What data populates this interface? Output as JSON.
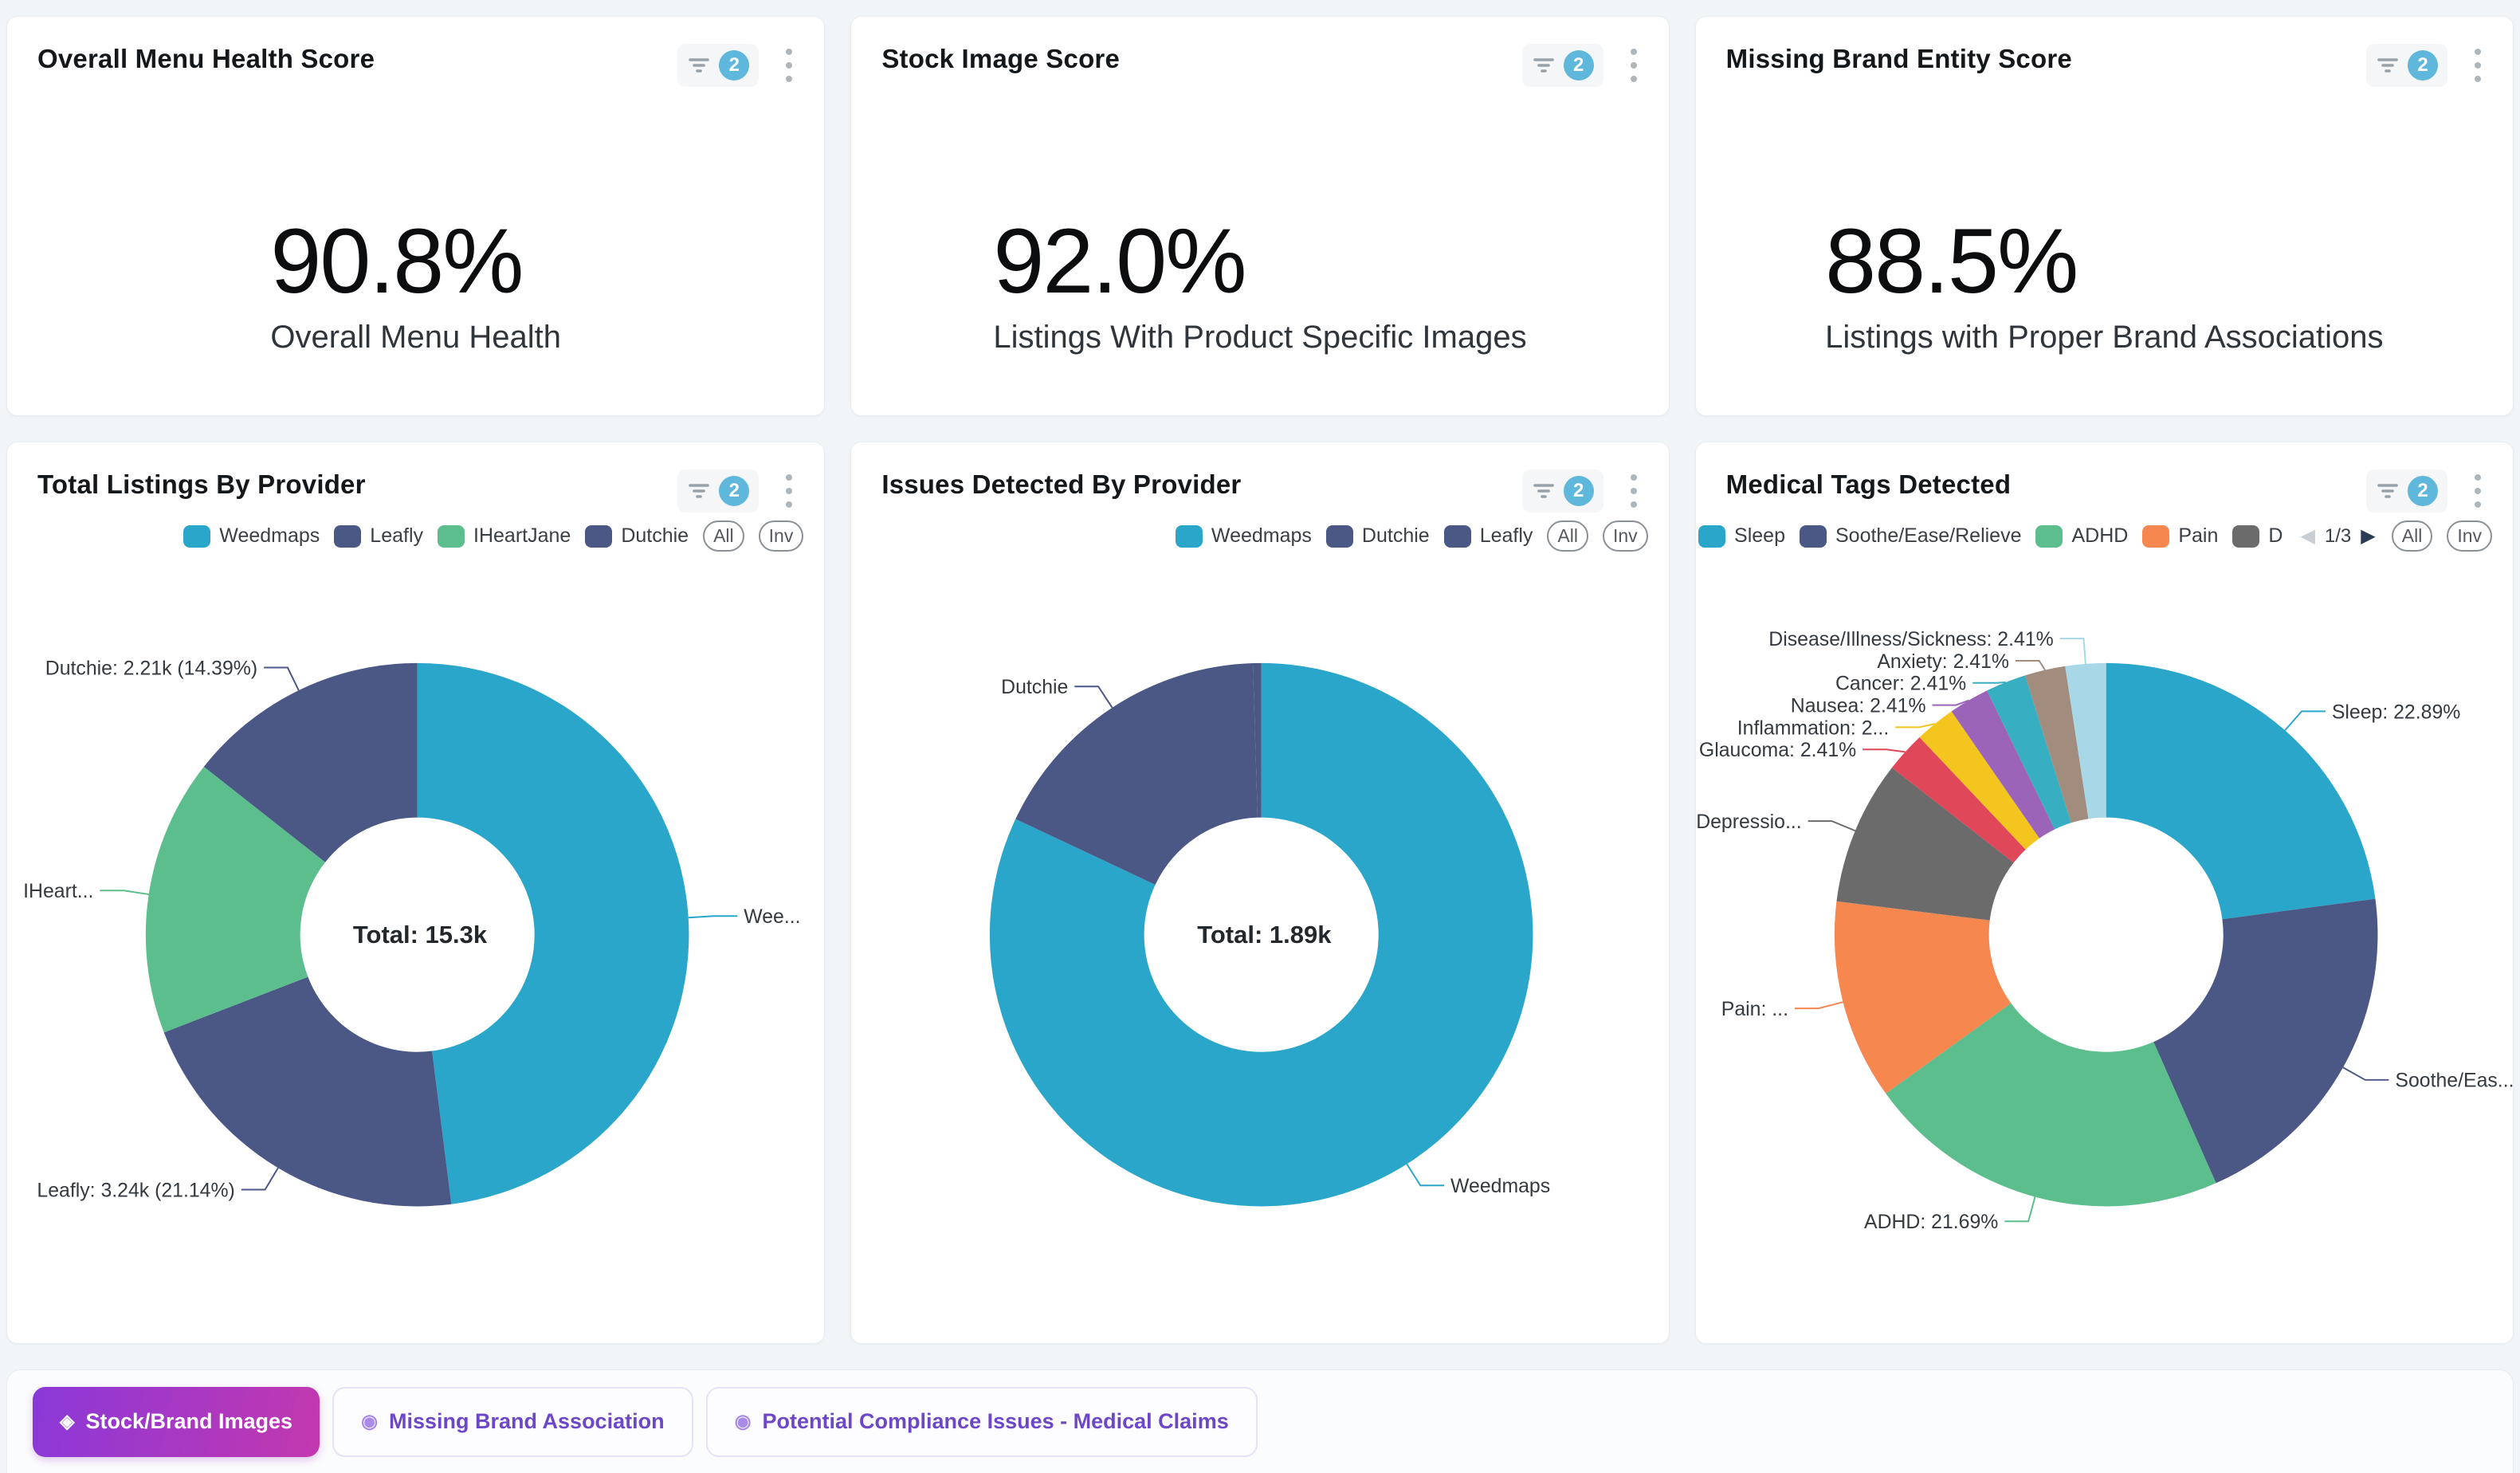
{
  "icons": {
    "diamond": "◈",
    "target": "◉",
    "prev": "◀",
    "next": "▶"
  },
  "legend_buttons": {
    "all": "All",
    "inv": "Inv"
  },
  "stat_cards": [
    {
      "title": "Overall Menu Health Score",
      "filter_count": "2",
      "value": "90.8%",
      "subtitle": "Overall Menu Health"
    },
    {
      "title": "Stock Image Score",
      "filter_count": "2",
      "value": "92.0%",
      "subtitle": "Listings With Product Specific Images"
    },
    {
      "title": "Missing Brand Entity Score",
      "filter_count": "2",
      "value": "88.5%",
      "subtitle": "Listings with Proper Brand Associations"
    }
  ],
  "chart_cards": [
    {
      "filter_count": "2"
    },
    {
      "filter_count": "2"
    },
    {
      "filter_count": "2",
      "pagination": "1/3"
    }
  ],
  "chart_data": [
    {
      "type": "pie",
      "title": "Total Listings By Provider",
      "total_label": "Total: 15.3k",
      "total_value": 15300,
      "legend_position": "top-right",
      "legend": [
        {
          "label": "Weedmaps",
          "color": "#2aa6cb"
        },
        {
          "label": "Leafly",
          "color": "#4b5785"
        },
        {
          "label": "IHeartJane",
          "color": "#5cbe8c"
        },
        {
          "label": "Dutchie",
          "color": "#4b5785"
        }
      ],
      "series": [
        {
          "name": "Weedmaps",
          "value": 7340,
          "percent": 48.0,
          "color": "#2aa6cb",
          "label": "Wee..."
        },
        {
          "name": "Leafly",
          "value": 3240,
          "percent": 21.14,
          "color": "#4b5785",
          "label": "Leafly: 3.24k (21.14%)"
        },
        {
          "name": "IHeartJane",
          "value": 2520,
          "percent": 16.47,
          "color": "#5cbe8c",
          "label": "IHeart..."
        },
        {
          "name": "Dutchie",
          "value": 2210,
          "percent": 14.39,
          "color": "#4b5785",
          "label": "Dutchie: 2.21k (14.39%)"
        }
      ]
    },
    {
      "type": "pie",
      "title": "Issues Detected By Provider",
      "total_label": "Total: 1.89k",
      "total_value": 1890,
      "legend_position": "top-right",
      "legend": [
        {
          "label": "Weedmaps",
          "color": "#2aa6cb"
        },
        {
          "label": "Dutchie",
          "color": "#4b5785"
        },
        {
          "label": "Leafly",
          "color": "#4b5785"
        }
      ],
      "series": [
        {
          "name": "Weedmaps",
          "value": 1550,
          "percent": 82.0,
          "color": "#2aa6cb",
          "label": "Weedmaps"
        },
        {
          "name": "Dutchie",
          "value": 331,
          "percent": 17.5,
          "color": "#4b5785",
          "label": "Dutchie"
        },
        {
          "name": "Leafly",
          "value": 9,
          "percent": 0.5,
          "color": "#4b5785",
          "label": ""
        }
      ]
    },
    {
      "type": "pie",
      "title": "Medical Tags Detected",
      "legend_position": "top-right",
      "legend": [
        {
          "label": "Sleep",
          "color": "#2aa6cb"
        },
        {
          "label": "Soothe/Ease/Relieve",
          "color": "#4b5785"
        },
        {
          "label": "ADHD",
          "color": "#5cbe8c"
        },
        {
          "label": "Pain",
          "color": "#f6874f"
        },
        {
          "label": "D",
          "color": "#6b6b6b"
        }
      ],
      "series": [
        {
          "name": "Sleep",
          "value": 22.89,
          "percent": 22.89,
          "color": "#2aa6cb",
          "label": "Sleep: 22.89%"
        },
        {
          "name": "Soothe/Ease/Relieve",
          "value": 20.48,
          "percent": 20.48,
          "color": "#4b5785",
          "label": "Soothe/Eas..."
        },
        {
          "name": "ADHD",
          "value": 21.69,
          "percent": 21.69,
          "color": "#5cbe8c",
          "label": "ADHD: 21.69%"
        },
        {
          "name": "Pain",
          "value": 11.9,
          "percent": 11.9,
          "color": "#f6874f",
          "label": "Pain: ..."
        },
        {
          "name": "Depression",
          "value": 8.58,
          "percent": 8.58,
          "color": "#6b6b6b",
          "label": "Depressio..."
        },
        {
          "name": "Glaucoma",
          "value": 2.41,
          "percent": 2.41,
          "color": "#e0485a",
          "label": "Glaucoma: 2.41%"
        },
        {
          "name": "Inflammation",
          "value": 2.41,
          "percent": 2.41,
          "color": "#f5c51f",
          "label": "Inflammation: 2..."
        },
        {
          "name": "Nausea",
          "value": 2.41,
          "percent": 2.41,
          "color": "#9c64b8",
          "label": "Nausea: 2.41%"
        },
        {
          "name": "Cancer",
          "value": 2.41,
          "percent": 2.41,
          "color": "#38aec2",
          "label": "Cancer: 2.41%"
        },
        {
          "name": "Anxiety",
          "value": 2.41,
          "percent": 2.41,
          "color": "#a18c7d",
          "label": "Anxiety: 2.41%"
        },
        {
          "name": "Disease/Illness/Sickness",
          "value": 2.41,
          "percent": 2.41,
          "color": "#a8d8e8",
          "label": "Disease/Illness/Sickness: 2.41%"
        }
      ]
    }
  ],
  "footer": {
    "chips": [
      {
        "label": "Stock/Brand Images",
        "active": true
      },
      {
        "label": "Missing Brand Association",
        "active": false
      },
      {
        "label": "Potential Compliance Issues - Medical Claims",
        "active": false
      }
    ]
  }
}
